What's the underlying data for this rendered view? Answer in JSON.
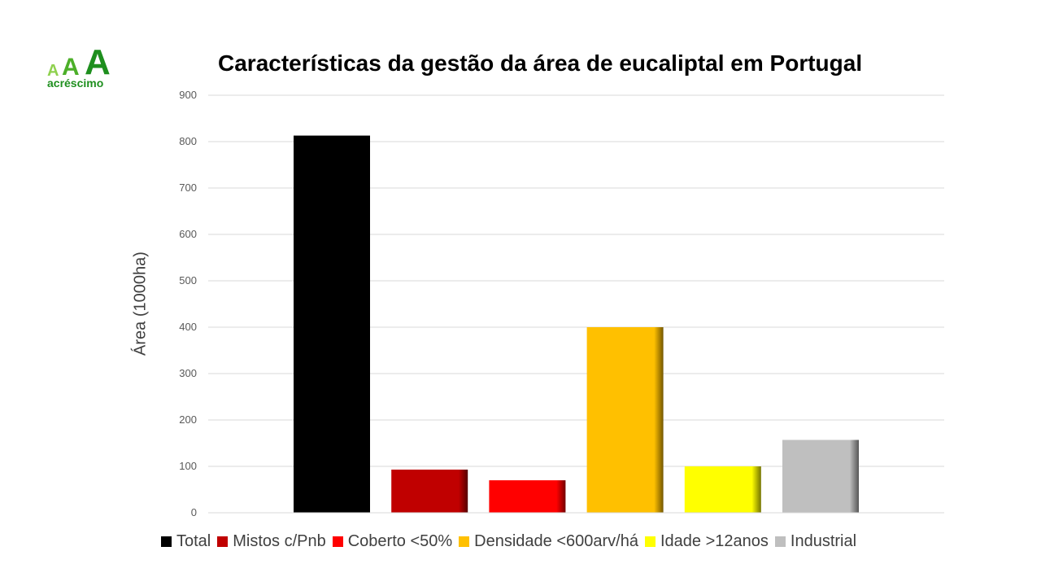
{
  "logo": {
    "letters": [
      "A",
      "A",
      "A"
    ],
    "text": "acréscimo"
  },
  "chart_data": {
    "type": "bar",
    "title": "Características da gestão da área de eucaliptal em Portugal",
    "xlabel": "",
    "ylabel": "Área (1000ha)",
    "ylim": [
      0,
      900
    ],
    "yticks": [
      0,
      100,
      200,
      300,
      400,
      500,
      600,
      700,
      800,
      900
    ],
    "grid": true,
    "legend_position": "bottom",
    "categories": [
      "Total",
      "Mistos c/Pnb",
      "Coberto <50%",
      "Densidade <600arv/há",
      "Idade >12anos",
      "Industrial"
    ],
    "values": [
      813,
      93,
      70,
      400,
      100,
      157
    ],
    "colors": [
      "#000000",
      "#c00000",
      "#ff0000",
      "#ffc000",
      "#ffff00",
      "#bfbfbf"
    ]
  }
}
